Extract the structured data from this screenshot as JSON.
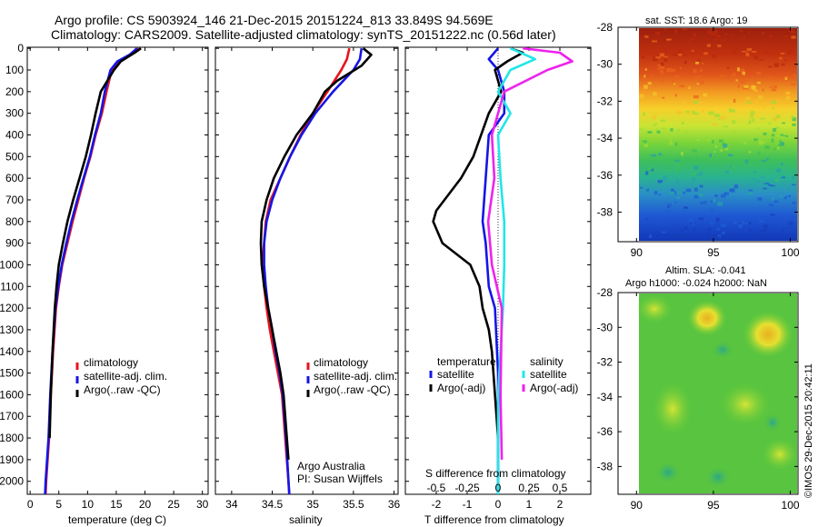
{
  "header": {
    "line1": "Argo profile: CS 5903924_146 21-Dec-2015 20151224_813 33.849S 94.569E",
    "line2": "Climatology: CARS2009. Satellite-adjusted climatology: synTS_20151222.nc (0.56d later)"
  },
  "colors": {
    "clim": "#e8141c",
    "sat": "#1515e6",
    "argo": "#000000",
    "sal_sat": "#22e6e6",
    "sal_argo": "#ee22ee"
  },
  "chart_data": [
    {
      "id": "temperature",
      "type": "line",
      "xlabel": "temperature (deg C)",
      "ylabel": "",
      "xlim": [
        -0.5,
        31
      ],
      "ylim": [
        2060,
        -5
      ],
      "xticks": [
        "0",
        "5",
        "10",
        "15",
        "20",
        "25",
        "30"
      ],
      "yticks": [
        "0",
        "100",
        "200",
        "300",
        "400",
        "500",
        "600",
        "700",
        "800",
        "900",
        "1000",
        "1100",
        "1200",
        "1300",
        "1400",
        "1500",
        "1600",
        "1700",
        "1800",
        "1900",
        "2000"
      ],
      "legend": [
        "climatology",
        "satellite-adj. clim.",
        "Argo(..raw -QC)"
      ],
      "series": [
        {
          "name": "climatology",
          "points": [
            [
              18.9,
              0
            ],
            [
              17.5,
              30
            ],
            [
              15.5,
              60
            ],
            [
              14.2,
              100
            ],
            [
              13.3,
              200
            ],
            [
              12.5,
              300
            ],
            [
              11.4,
              400
            ],
            [
              10.5,
              500
            ],
            [
              9.4,
              600
            ],
            [
              8.4,
              700
            ],
            [
              7.4,
              800
            ],
            [
              6.5,
              900
            ],
            [
              5.6,
              1000
            ],
            [
              5.0,
              1100
            ],
            [
              4.5,
              1200
            ],
            [
              4.0,
              1400
            ],
            [
              3.6,
              1600
            ],
            [
              3.3,
              1800
            ],
            [
              2.8,
              2000
            ],
            [
              2.7,
              2060
            ]
          ]
        },
        {
          "name": "satellite-adj. clim.",
          "points": [
            [
              18.6,
              0
            ],
            [
              17.3,
              30
            ],
            [
              15.2,
              60
            ],
            [
              14.0,
              100
            ],
            [
              13.0,
              200
            ],
            [
              12.3,
              300
            ],
            [
              11.3,
              400
            ],
            [
              10.4,
              500
            ],
            [
              9.3,
              600
            ],
            [
              8.2,
              700
            ],
            [
              7.2,
              800
            ],
            [
              6.3,
              900
            ],
            [
              5.5,
              1000
            ],
            [
              4.9,
              1100
            ],
            [
              4.4,
              1200
            ],
            [
              3.9,
              1400
            ],
            [
              3.5,
              1600
            ],
            [
              3.2,
              1800
            ],
            [
              2.7,
              2000
            ],
            [
              2.6,
              2060
            ]
          ]
        },
        {
          "name": "Argo(..raw -QC)",
          "points": [
            [
              19.3,
              0
            ],
            [
              18.2,
              20
            ],
            [
              15.8,
              60
            ],
            [
              14.6,
              100
            ],
            [
              12.3,
              200
            ],
            [
              11.4,
              300
            ],
            [
              10.6,
              400
            ],
            [
              9.7,
              500
            ],
            [
              8.6,
              600
            ],
            [
              7.5,
              700
            ],
            [
              6.5,
              800
            ],
            [
              5.7,
              900
            ],
            [
              5.0,
              1000
            ],
            [
              4.6,
              1100
            ],
            [
              4.3,
              1200
            ],
            [
              3.9,
              1400
            ],
            [
              3.6,
              1600
            ],
            [
              3.4,
              1800
            ]
          ]
        }
      ]
    },
    {
      "id": "salinity",
      "type": "line",
      "xlabel": "salinity",
      "ylabel": "",
      "xlim": [
        33.8,
        36.05
      ],
      "ylim": [
        2060,
        -5
      ],
      "xticks": [
        "34",
        "34.5",
        "35",
        "35.5",
        "36"
      ],
      "legend": [
        "climatology",
        "satellite-adj. clim.",
        "Argo(..raw -QC)"
      ],
      "annotation": [
        "Argo Australia",
        "PI: Susan Wijffels"
      ],
      "series": [
        {
          "name": "climatology",
          "points": [
            [
              35.45,
              0
            ],
            [
              35.42,
              50
            ],
            [
              35.35,
              100
            ],
            [
              35.18,
              200
            ],
            [
              35.0,
              300
            ],
            [
              34.85,
              400
            ],
            [
              34.72,
              500
            ],
            [
              34.6,
              600
            ],
            [
              34.48,
              700
            ],
            [
              34.42,
              800
            ],
            [
              34.4,
              900
            ],
            [
              34.38,
              1000
            ],
            [
              34.4,
              1100
            ],
            [
              34.43,
              1200
            ],
            [
              34.47,
              1300
            ],
            [
              34.52,
              1400
            ],
            [
              34.57,
              1500
            ],
            [
              34.62,
              1600
            ],
            [
              34.66,
              1800
            ],
            [
              34.7,
              2000
            ],
            [
              34.71,
              2060
            ]
          ]
        },
        {
          "name": "satellite-adj. clim.",
          "points": [
            [
              35.6,
              0
            ],
            [
              35.58,
              50
            ],
            [
              35.5,
              100
            ],
            [
              35.25,
              200
            ],
            [
              35.03,
              300
            ],
            [
              34.86,
              400
            ],
            [
              34.72,
              500
            ],
            [
              34.6,
              600
            ],
            [
              34.5,
              700
            ],
            [
              34.43,
              800
            ],
            [
              34.4,
              900
            ],
            [
              34.4,
              1000
            ],
            [
              34.42,
              1100
            ],
            [
              34.45,
              1200
            ],
            [
              34.5,
              1300
            ],
            [
              34.54,
              1400
            ],
            [
              34.59,
              1500
            ],
            [
              34.63,
              1600
            ],
            [
              34.67,
              1800
            ],
            [
              34.7,
              2000
            ],
            [
              34.71,
              2060
            ]
          ]
        },
        {
          "name": "Argo(..raw -QC)",
          "points": [
            [
              35.62,
              0
            ],
            [
              35.72,
              30
            ],
            [
              35.6,
              80
            ],
            [
              35.3,
              150
            ],
            [
              35.15,
              200
            ],
            [
              35.0,
              300
            ],
            [
              34.8,
              400
            ],
            [
              34.65,
              500
            ],
            [
              34.52,
              600
            ],
            [
              34.43,
              700
            ],
            [
              34.37,
              800
            ],
            [
              34.36,
              900
            ],
            [
              34.37,
              1000
            ],
            [
              34.4,
              1100
            ],
            [
              34.45,
              1200
            ],
            [
              34.5,
              1300
            ],
            [
              34.55,
              1400
            ],
            [
              34.6,
              1500
            ],
            [
              34.64,
              1600
            ],
            [
              34.68,
              1800
            ],
            [
              34.7,
              1900
            ]
          ]
        }
      ]
    },
    {
      "id": "difference",
      "type": "line",
      "xlabel": "T difference from climatology",
      "xlabel_top": "S difference from climatology",
      "xlim": [
        -3.0,
        3.0
      ],
      "ylim": [
        2060,
        -5
      ],
      "xticks": [
        "-2",
        "-1",
        "0",
        "1",
        "2"
      ],
      "xticks_s": [
        "-0.5",
        "-0.25",
        "0",
        "0.25",
        "0.5"
      ],
      "legend_groups": [
        {
          "title": "temperature",
          "items": [
            "satellite",
            "Argo(-adj)"
          ]
        },
        {
          "title": "salinity",
          "items": [
            "satellite",
            "Argo(-adj)"
          ]
        }
      ],
      "series": [
        {
          "name": "temperature satellite",
          "points": [
            [
              0,
              0
            ],
            [
              -0.3,
              50
            ],
            [
              0,
              100
            ],
            [
              0.2,
              200
            ],
            [
              0.2,
              300
            ],
            [
              -0.3,
              400
            ],
            [
              -0.4,
              600
            ],
            [
              -0.5,
              800
            ],
            [
              -0.4,
              900
            ],
            [
              -0.3,
              1100
            ],
            [
              -0.1,
              1200
            ],
            [
              0.0,
              1500
            ],
            [
              0.0,
              2060
            ]
          ]
        },
        {
          "name": "temperature Argo(-adj)",
          "points": [
            [
              0.4,
              0
            ],
            [
              0.8,
              20
            ],
            [
              0.3,
              60
            ],
            [
              -0.1,
              100
            ],
            [
              0.1,
              200
            ],
            [
              -0.3,
              300
            ],
            [
              -0.8,
              500
            ],
            [
              -1.2,
              600
            ],
            [
              -2.0,
              750
            ],
            [
              -2.1,
              800
            ],
            [
              -1.8,
              900
            ],
            [
              -0.9,
              1000
            ],
            [
              -0.6,
              1100
            ],
            [
              -0.5,
              1200
            ],
            [
              -0.3,
              1300
            ],
            [
              -0.2,
              1400
            ],
            [
              -0.1,
              1600
            ],
            [
              0.0,
              1800
            ]
          ]
        },
        {
          "name": "salinity satellite",
          "points": [
            [
              0.1,
              0
            ],
            [
              0.3,
              50
            ],
            [
              0.1,
              100
            ],
            [
              0.0,
              200
            ],
            [
              0.1,
              300
            ],
            [
              0.0,
              400
            ],
            [
              0.02,
              600
            ],
            [
              0.05,
              800
            ],
            [
              0.05,
              1000
            ],
            [
              0.04,
              1200
            ],
            [
              0.0,
              1600
            ],
            [
              0.0,
              2060
            ]
          ]
        },
        {
          "name": "salinity Argo(-adj)",
          "points": [
            [
              0.2,
              0
            ],
            [
              0.5,
              20
            ],
            [
              0.6,
              60
            ],
            [
              0.4,
              100
            ],
            [
              0.05,
              200
            ],
            [
              0.0,
              300
            ],
            [
              -0.05,
              400
            ],
            [
              -0.03,
              600
            ],
            [
              -0.08,
              800
            ],
            [
              -0.05,
              1000
            ],
            [
              0.03,
              1200
            ],
            [
              0.02,
              1600
            ],
            [
              0.03,
              1900
            ]
          ]
        }
      ]
    },
    {
      "id": "sst_map",
      "type": "heatmap",
      "title": "sat. SST: 18.6  Argo: 19",
      "xlim": [
        88.8,
        100.5
      ],
      "ylim": [
        -39.6,
        -28
      ],
      "xticks": [
        "90",
        "95",
        "100"
      ],
      "yticks": [
        "-28",
        "-30",
        "-32",
        "-34",
        "-36",
        "-38"
      ]
    },
    {
      "id": "sla_map",
      "type": "heatmap",
      "title1": "Altim. SLA: -0.041",
      "title2": "Argo h1000: -0.024  h2000: NaN",
      "xlim": [
        88.8,
        100.5
      ],
      "ylim": [
        -39.6,
        -28
      ],
      "xticks": [
        "90",
        "95",
        "100"
      ],
      "yticks": [
        "-28",
        "-30",
        "-32",
        "-34",
        "-36",
        "-38"
      ]
    }
  ],
  "footer": {
    "watermark": "©IMOS 29-Dec-2015 20:42:11"
  }
}
